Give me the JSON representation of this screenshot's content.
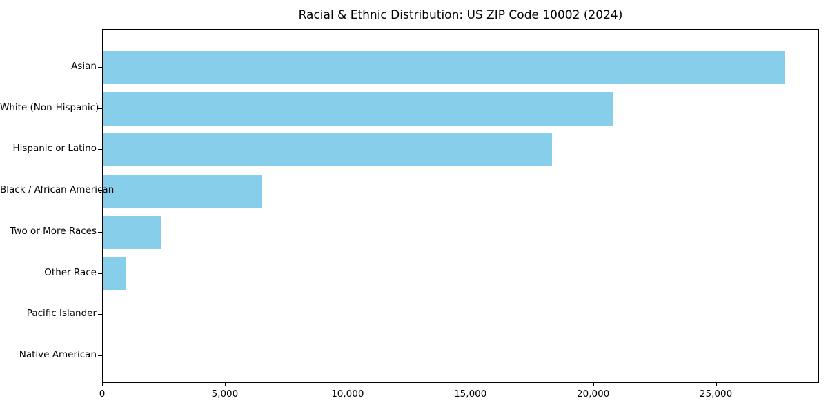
{
  "chart_data": {
    "type": "bar",
    "orientation": "horizontal",
    "title": "Racial & Ethnic Distribution: US ZIP Code 10002 (2024)",
    "categories": [
      "Asian",
      "White (Non-Hispanic)",
      "Hispanic or Latino",
      "Black / African American",
      "Two or More Races",
      "Other Race",
      "Pacific Islander",
      "Native American"
    ],
    "values": [
      27800,
      20800,
      18300,
      6500,
      2400,
      950,
      40,
      30
    ],
    "xlabel": "",
    "ylabel": "",
    "xlim": [
      0,
      29200
    ],
    "x_tick_values": [
      0,
      5000,
      10000,
      15000,
      20000,
      25000
    ],
    "x_tick_labels": [
      "0",
      "5,000",
      "10,000",
      "15,000",
      "20,000",
      "25,000"
    ],
    "bar_color": "#87CEEB",
    "frame_color": "#000000",
    "background_color": "#ffffff",
    "grid": false,
    "legend": null
  }
}
